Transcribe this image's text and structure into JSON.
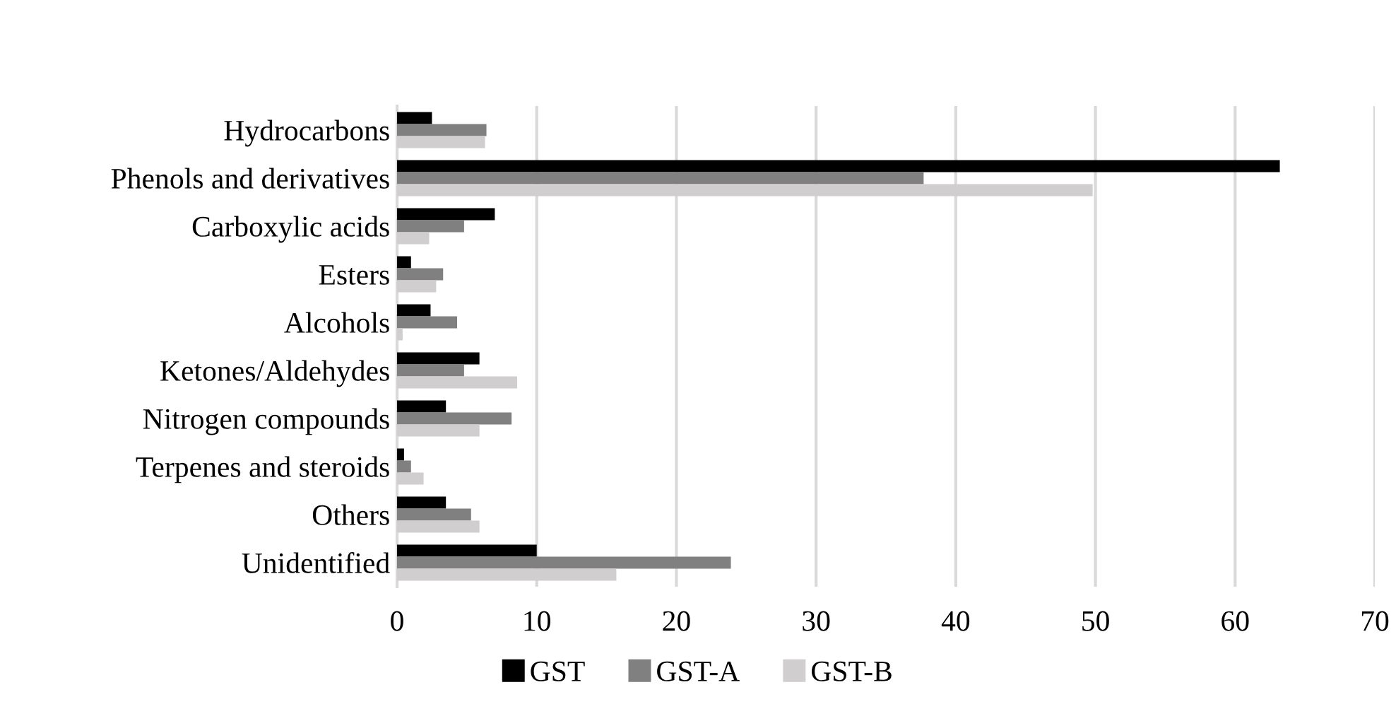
{
  "chart_data": {
    "type": "bar",
    "orientation": "horizontal",
    "categories": [
      "Hydrocarbons",
      "Phenols and derivatives",
      "Carboxylic acids",
      "Esters",
      "Alcohols",
      "Ketones/Aldehydes",
      "Nitrogen compounds",
      "Terpenes and steroids",
      "Others",
      "Unidentified"
    ],
    "series": [
      {
        "name": "GST",
        "color": "#000000",
        "values": [
          2.5,
          63.2,
          7.0,
          1.0,
          2.4,
          5.9,
          3.5,
          0.5,
          3.5,
          10.0
        ]
      },
      {
        "name": "GST-A",
        "color": "#808080",
        "values": [
          6.4,
          37.7,
          4.8,
          3.3,
          4.3,
          4.8,
          8.2,
          1.0,
          5.3,
          23.9
        ]
      },
      {
        "name": "GST-B",
        "color": "#d0cece",
        "values": [
          6.3,
          49.8,
          2.3,
          2.8,
          0.4,
          8.6,
          5.9,
          1.9,
          5.9,
          15.7
        ]
      }
    ],
    "xlim": [
      0,
      70
    ],
    "xticks": [
      0,
      10,
      20,
      30,
      40,
      50,
      60,
      70
    ],
    "grid": "x",
    "legend": "bottom"
  }
}
